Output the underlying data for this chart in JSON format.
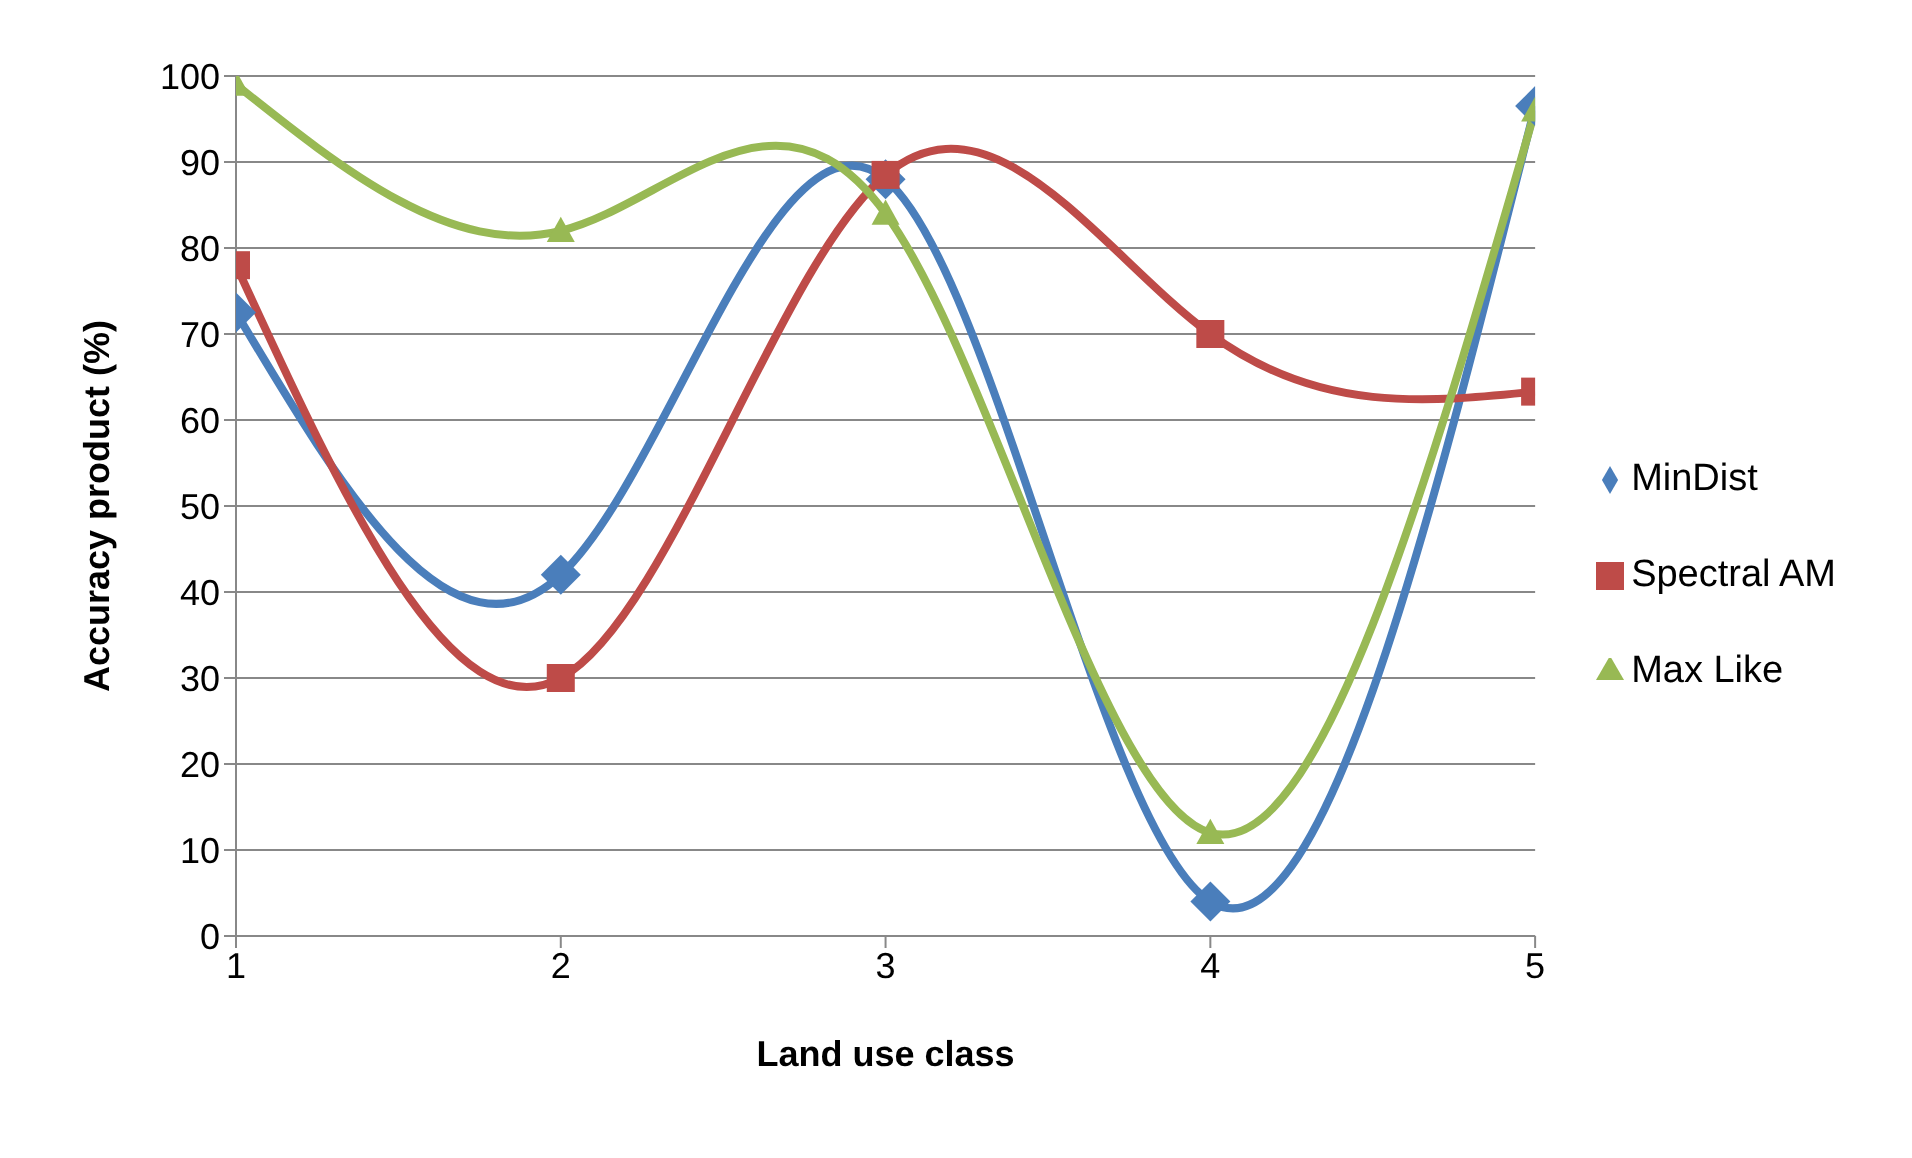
{
  "chart_data": {
    "type": "line",
    "xlabel": "Land use class",
    "ylabel": "Accuracy product (%)",
    "x": [
      1,
      2,
      3,
      4,
      5
    ],
    "xlim": [
      1,
      5
    ],
    "xticks": [
      1,
      2,
      3,
      4,
      5
    ],
    "ylim": [
      0,
      100
    ],
    "yticks": [
      0,
      10,
      20,
      30,
      40,
      50,
      60,
      70,
      80,
      90,
      100
    ],
    "grid": "y",
    "legend": "right",
    "line_style": "solid",
    "series": [
      {
        "name": "MinDist",
        "color": "#4a7ebb",
        "marker": "diamond",
        "values": [
          72.5,
          42,
          88,
          4,
          96.5
        ]
      },
      {
        "name": "Spectral AM",
        "color": "#be4b48",
        "marker": "square",
        "values": [
          78,
          30,
          88.5,
          70,
          63.3
        ]
      },
      {
        "name": "Max Like",
        "color": "#98b954",
        "marker": "triangle",
        "values": [
          99,
          82,
          84,
          12,
          96
        ]
      }
    ]
  }
}
